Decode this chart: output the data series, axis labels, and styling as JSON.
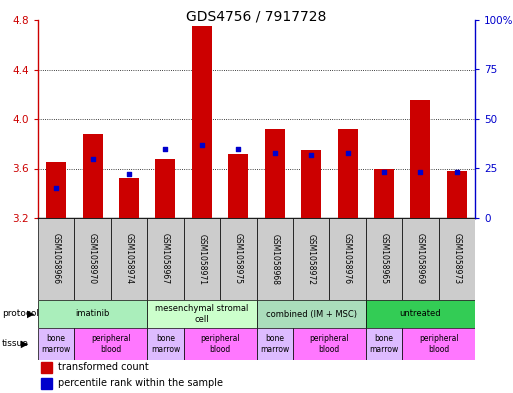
{
  "title": "GDS4756 / 7917728",
  "samples": [
    "GSM1058966",
    "GSM1058970",
    "GSM1058974",
    "GSM1058967",
    "GSM1058971",
    "GSM1058975",
    "GSM1058968",
    "GSM1058972",
    "GSM1058976",
    "GSM1058965",
    "GSM1058969",
    "GSM1058973"
  ],
  "transformed_counts": [
    3.65,
    3.88,
    3.52,
    3.68,
    4.75,
    3.72,
    3.92,
    3.75,
    3.92,
    3.6,
    4.15,
    3.58
  ],
  "percentile_ranks": [
    15,
    30,
    22,
    35,
    37,
    35,
    33,
    32,
    33,
    23,
    23,
    23
  ],
  "ymin": 3.2,
  "ymax": 4.8,
  "y_ticks": [
    3.2,
    3.6,
    4.0,
    4.4,
    4.8
  ],
  "y2min": 0,
  "y2max": 100,
  "y2_ticks": [
    0,
    25,
    50,
    75,
    100
  ],
  "bar_color": "#cc0000",
  "dot_color": "#0000cc",
  "protocols": [
    {
      "label": "imatinib",
      "start": 0,
      "end": 3,
      "color": "#aaeebb"
    },
    {
      "label": "mesenchymal stromal\ncell",
      "start": 3,
      "end": 6,
      "color": "#ccffcc"
    },
    {
      "label": "combined (IM + MSC)",
      "start": 6,
      "end": 9,
      "color": "#aaddbb"
    },
    {
      "label": "untreated",
      "start": 9,
      "end": 12,
      "color": "#33cc55"
    }
  ],
  "tissues": [
    {
      "label": "bone\nmarrow",
      "start": 0,
      "end": 1,
      "color": "#ddbbff"
    },
    {
      "label": "peripheral\nblood",
      "start": 1,
      "end": 3,
      "color": "#ff77ff"
    },
    {
      "label": "bone\nmarrow",
      "start": 3,
      "end": 4,
      "color": "#ddbbff"
    },
    {
      "label": "peripheral\nblood",
      "start": 4,
      "end": 6,
      "color": "#ff77ff"
    },
    {
      "label": "bone\nmarrow",
      "start": 6,
      "end": 7,
      "color": "#ddbbff"
    },
    {
      "label": "peripheral\nblood",
      "start": 7,
      "end": 9,
      "color": "#ff77ff"
    },
    {
      "label": "bone\nmarrow",
      "start": 9,
      "end": 10,
      "color": "#ddbbff"
    },
    {
      "label": "peripheral\nblood",
      "start": 10,
      "end": 12,
      "color": "#ff77ff"
    }
  ],
  "left_axis_color": "#cc0000",
  "right_axis_color": "#0000cc",
  "grid_color": "#000000",
  "title_fontsize": 10,
  "sample_label_fontsize": 5.5,
  "bar_width": 0.55
}
